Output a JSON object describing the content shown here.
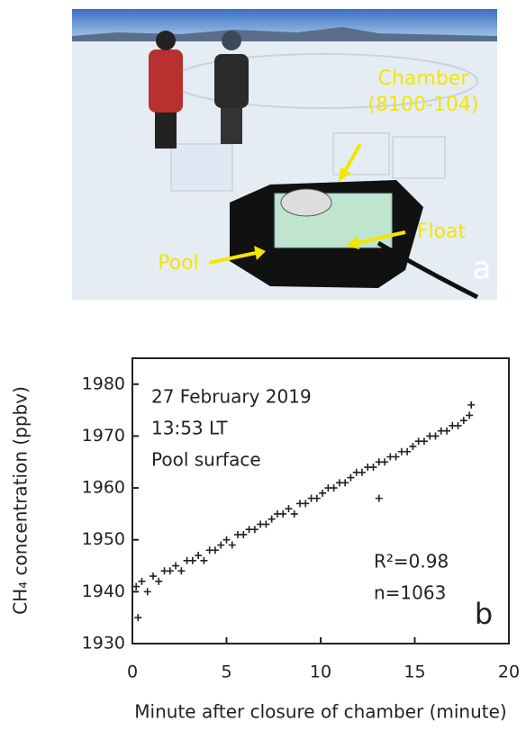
{
  "photo": {
    "labels": [
      "Chamber",
      "(8100-104)",
      "Float",
      "Pool"
    ],
    "panel_label": "a"
  },
  "chart_data": {
    "type": "scatter",
    "x_label": "Minute after closure of chamber (minute)",
    "y_label": "CH₄ concentration (ppbv)",
    "annotations": [
      "27 February 2019",
      "13:53 LT",
      "Pool surface",
      "R²=0.98",
      "n=1063"
    ],
    "panel_label": "b",
    "color": "#222222",
    "xlim": [
      0,
      20
    ],
    "xticks": [
      0,
      5,
      10,
      15,
      20
    ],
    "ylim": [
      1930,
      1985
    ],
    "yticks": [
      1930,
      1940,
      1950,
      1960,
      1970,
      1980
    ],
    "x": [
      0.2,
      0.5,
      0.8,
      1.1,
      1.4,
      1.7,
      2.0,
      2.3,
      2.6,
      2.9,
      3.2,
      3.5,
      3.8,
      4.1,
      4.4,
      4.7,
      5.0,
      5.3,
      5.6,
      5.9,
      6.2,
      6.5,
      6.8,
      7.1,
      7.4,
      7.7,
      8.0,
      8.3,
      8.6,
      8.9,
      9.2,
      9.5,
      9.8,
      10.1,
      10.4,
      10.7,
      11.0,
      11.3,
      11.6,
      11.9,
      12.2,
      12.5,
      12.8,
      13.1,
      13.4,
      13.7,
      14.0,
      14.3,
      14.6,
      14.9,
      15.2,
      15.5,
      15.8,
      16.1,
      16.4,
      16.7,
      17.0,
      17.3,
      17.6,
      17.9,
      0.3,
      18.0,
      13.1
    ],
    "values": [
      1941,
      1942,
      1940,
      1943,
      1942,
      1944,
      1944,
      1945,
      1944,
      1946,
      1946,
      1947,
      1946,
      1948,
      1948,
      1949,
      1950,
      1949,
      1951,
      1951,
      1952,
      1952,
      1953,
      1953,
      1954,
      1955,
      1955,
      1956,
      1955,
      1957,
      1957,
      1958,
      1958,
      1959,
      1960,
      1960,
      1961,
      1961,
      1962,
      1963,
      1963,
      1964,
      1964,
      1965,
      1965,
      1966,
      1966,
      1967,
      1967,
      1968,
      1969,
      1969,
      1970,
      1970,
      1971,
      1971,
      1972,
      1972,
      1973,
      1974,
      1935,
      1976,
      1958
    ]
  }
}
